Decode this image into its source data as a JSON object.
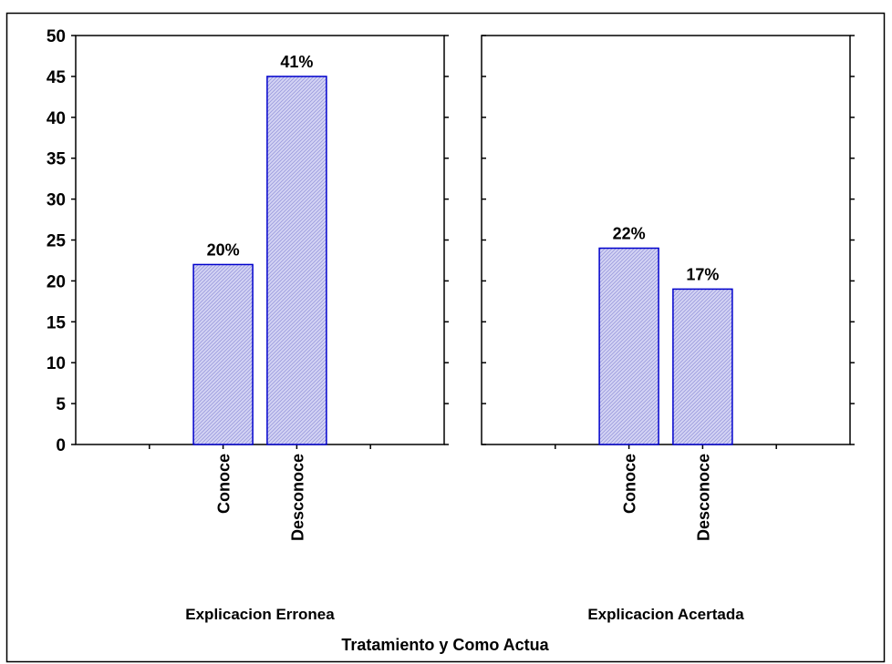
{
  "chart_data": {
    "type": "bar",
    "title": "",
    "xlabel": "Tratamiento y Como Actua",
    "ylabel": "",
    "ylim": [
      0,
      50
    ],
    "yticks": [
      "0",
      "5",
      "10",
      "15",
      "20",
      "25",
      "30",
      "35",
      "40",
      "45",
      "50"
    ],
    "bar_color": "#c8c8f0",
    "bar_edge_color": "#0000cc",
    "grid": false,
    "panels": [
      {
        "group_label": "Explicacion Erronea",
        "categories": [
          "Conoce",
          "Desconoce"
        ],
        "values": [
          22,
          45
        ],
        "labels": [
          "20%",
          "41%"
        ]
      },
      {
        "group_label": "Explicacion Acertada",
        "categories": [
          "Conoce",
          "Desconoce"
        ],
        "values": [
          24,
          19
        ],
        "labels": [
          "22%",
          "17%"
        ]
      }
    ]
  }
}
